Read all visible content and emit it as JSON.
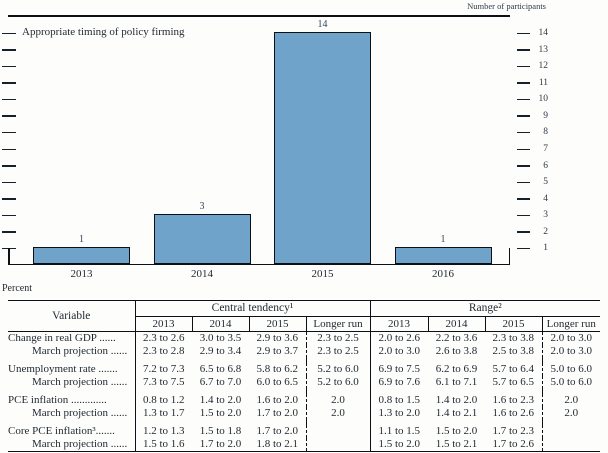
{
  "chart_data": [
    {
      "type": "bar",
      "title": "Appropriate timing of policy firming",
      "unit_label": "Number of participants",
      "categories": [
        "2013",
        "2014",
        "2015",
        "2016"
      ],
      "values": [
        1,
        3,
        14,
        1
      ],
      "ylim": [
        0,
        15
      ],
      "yticks": [
        1,
        2,
        3,
        4,
        5,
        6,
        7,
        8,
        9,
        10,
        11,
        12,
        13,
        14
      ],
      "legend": "none",
      "grid": "off",
      "bar_color": "#6fa3c9",
      "bar_border_color": "#0d1117"
    },
    {
      "type": "table",
      "unit_label": "Percent",
      "col_groups": [
        "Central tendency¹",
        "Range²"
      ],
      "years": [
        "2013",
        "2014",
        "2015",
        "Longer run"
      ],
      "rows": [
        {
          "label": "Change in real GDP ......",
          "indent": false,
          "ct": [
            "2.3 to 2.6",
            "3.0 to 3.5",
            "2.9 to 3.6",
            "2.3 to 2.5"
          ],
          "range": [
            "2.0 to 2.6",
            "2.2 to 3.6",
            "2.3 to 3.8",
            "2.0 to 3.0"
          ]
        },
        {
          "label": "March projection ......",
          "indent": true,
          "ct": [
            "2.3 to 2.8",
            "2.9 to 3.4",
            "2.9 to 3.7",
            "2.3 to 2.5"
          ],
          "range": [
            "2.0 to 3.0",
            "2.6 to 3.8",
            "2.5 to 3.8",
            "2.0 to 3.0"
          ]
        },
        {
          "label": "Unemployment rate .......",
          "indent": false,
          "ct": [
            "7.2 to 7.3",
            "6.5 to 6.8",
            "5.8 to 6.2",
            "5.2 to 6.0"
          ],
          "range": [
            "6.9 to 7.5",
            "6.2 to 6.9",
            "5.7 to 6.4",
            "5.0 to 6.0"
          ]
        },
        {
          "label": "March projection ......",
          "indent": true,
          "ct": [
            "7.3 to 7.5",
            "6.7 to 7.0",
            "6.0 to 6.5",
            "5.2 to 6.0"
          ],
          "range": [
            "6.9 to 7.6",
            "6.1 to 7.1",
            "5.7 to 6.5",
            "5.0 to 6.0"
          ]
        },
        {
          "label": "PCE inflation .............",
          "indent": false,
          "ct": [
            "0.8 to 1.2",
            "1.4 to 2.0",
            "1.6 to 2.0",
            "2.0"
          ],
          "range": [
            "0.8 to 1.5",
            "1.4 to 2.0",
            "1.6 to 2.3",
            "2.0"
          ]
        },
        {
          "label": "March projection ......",
          "indent": true,
          "ct": [
            "1.3 to 1.7",
            "1.5 to 2.0",
            "1.7 to 2.0",
            "2.0"
          ],
          "range": [
            "1.3 to 2.0",
            "1.4 to 2.1",
            "1.6 to 2.6",
            "2.0"
          ]
        },
        {
          "label": "Core PCE inflation³.......",
          "indent": false,
          "ct": [
            "1.2 to 1.3",
            "1.5 to 1.8",
            "1.7 to 2.0",
            ""
          ],
          "range": [
            "1.1 to 1.5",
            "1.5 to 2.0",
            "1.7 to 2.3",
            ""
          ]
        },
        {
          "label": "March projection ......",
          "indent": true,
          "ct": [
            "1.5 to 1.6",
            "1.7 to 2.0",
            "1.8 to 2.1",
            ""
          ],
          "range": [
            "1.5 to 2.0",
            "1.5 to 2.1",
            "1.7 to 2.6",
            ""
          ]
        }
      ]
    }
  ],
  "table_header": {
    "variable": "Variable",
    "central_tendency": "Central tendency¹",
    "range": "Range²",
    "years": [
      "2013",
      "2014",
      "2015",
      "Longer run"
    ]
  },
  "labels": {
    "number_of_participants": "Number of participants",
    "percent": "Percent",
    "chart_title": "Appropriate timing of policy firming"
  }
}
